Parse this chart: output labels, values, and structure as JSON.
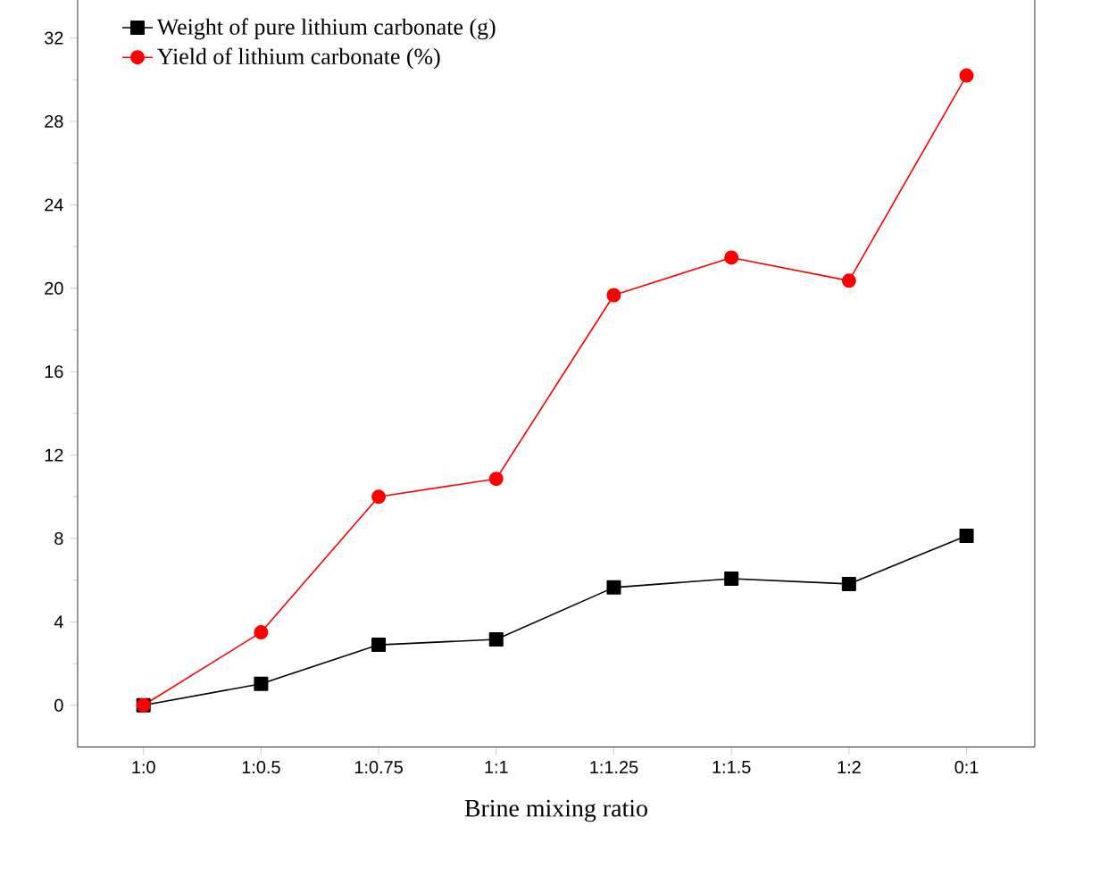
{
  "chart_data": {
    "type": "line",
    "xlabel": "Brine mixing ratio",
    "categories": [
      "1:0",
      "1:0.5",
      "1:0.75",
      "1:1",
      "1:1.25",
      "1:1.5",
      "1:2",
      "0:1"
    ],
    "series": [
      {
        "name": "Weight of pure lithium carbonate (g)",
        "color": "#000000",
        "marker": "square",
        "values": [
          0,
          1.03,
          2.9,
          3.16,
          5.65,
          6.07,
          5.82,
          8.13
        ]
      },
      {
        "name": "Yield of lithium carbonate (%)",
        "color": "#ff0000",
        "marker": "circle",
        "values": [
          0,
          3.5,
          10.0,
          10.86,
          19.67,
          21.47,
          20.36,
          30.2
        ]
      }
    ],
    "ylim": [
      -2,
      34.4
    ],
    "yticks": [
      0,
      4,
      8,
      12,
      16,
      20,
      24,
      28,
      32
    ],
    "legend": "top left",
    "grid": false,
    "line_style": "solid"
  }
}
